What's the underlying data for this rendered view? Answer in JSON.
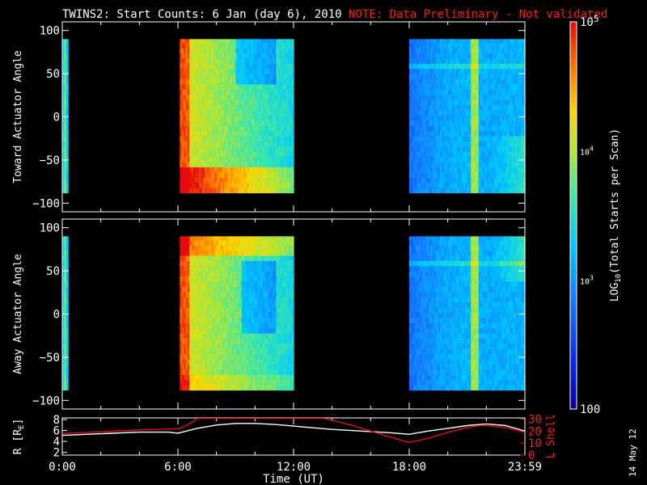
{
  "title": {
    "main": "TWINS2: Start Counts:  6 Jan (day   6), 2010",
    "note": "NOTE: Data Preliminary - Not validated"
  },
  "colorbar": {
    "label_log": "LOG",
    "label_sub": "10",
    "label_rest": "(Total Starts per Scan)",
    "ticks": [
      {
        "value": 100,
        "label": "100",
        "style": "plain"
      },
      {
        "value": 1000,
        "label": "10",
        "sup": "3",
        "style": "power"
      },
      {
        "value": 10000,
        "label": "10",
        "sup": "4",
        "style": "power"
      },
      {
        "value": 100000,
        "label": "10",
        "sup": "5",
        "style": "power"
      }
    ],
    "range": [
      100,
      100000
    ],
    "scale": "log"
  },
  "footer": {
    "date_stamp": "14 May 12"
  },
  "colors": {
    "background": "#000000",
    "note": "#ff1a1a",
    "r_line": "#ffffff",
    "l_line": "#e01010"
  },
  "chart_data": [
    {
      "type": "heatmap",
      "panel": "toward",
      "ylabel": "Toward Actuator Angle",
      "xlim": [
        0,
        24
      ],
      "ylim": [
        -110,
        110
      ],
      "yticks": [
        100,
        50,
        0,
        -50,
        -100
      ],
      "ytick_labels": [
        "100",
        "50",
        "0",
        "−50",
        "−100"
      ],
      "angle_range": [
        -88,
        90
      ],
      "data_intervals_hours": [
        [
          0.0,
          0.35
        ],
        [
          6.05,
          11.95
        ],
        [
          18.0,
          24.0
        ]
      ],
      "value_scale": "log10 counts",
      "notes": "high counts (~1e5) near 6:00 and around -80 deg; lows (~1e2.3) around 18:00-21:00"
    },
    {
      "type": "heatmap",
      "panel": "away",
      "ylabel": "Away Actuator Angle",
      "xlim": [
        0,
        24
      ],
      "ylim": [
        -110,
        110
      ],
      "yticks": [
        100,
        50,
        0,
        -50,
        -100
      ],
      "ytick_labels": [
        "100",
        "50",
        "0",
        "−50",
        "−100"
      ],
      "angle_range": [
        -88,
        90
      ],
      "data_intervals_hours": [
        [
          0.0,
          0.35
        ],
        [
          6.05,
          11.95
        ],
        [
          18.0,
          24.0
        ]
      ],
      "value_scale": "log10 counts"
    },
    {
      "type": "line",
      "panel": "orbit",
      "xlabel": "Time (UT)",
      "xlim": [
        0,
        24
      ],
      "xticks": [
        0,
        6,
        12,
        18,
        24
      ],
      "xtick_labels": [
        "0:00",
        "6:00",
        "12:00",
        "18:00",
        "23:59"
      ],
      "left_axis": {
        "label": "R [R",
        "label_sub": "E",
        "label_end": "]",
        "ylim": [
          1.5,
          8.3
        ],
        "yticks": [
          2,
          4,
          6,
          8
        ],
        "ytick_labels": [
          "2",
          "4",
          "6",
          "8"
        ]
      },
      "right_axis": {
        "label": "L Shell",
        "ylim": [
          0,
          31
        ],
        "yticks": [
          0,
          10,
          20,
          30
        ],
        "ytick_labels": [
          "0",
          "10",
          "20",
          "30"
        ]
      },
      "series": [
        {
          "axis": "left",
          "x": [
            0,
            2,
            4,
            5.5,
            6,
            7,
            8,
            9,
            10,
            11,
            12,
            13,
            14,
            15,
            16,
            17,
            18,
            19,
            20,
            21,
            22,
            23,
            24
          ],
          "values": [
            5.1,
            5.4,
            5.7,
            5.7,
            5.5,
            6.4,
            7.0,
            7.3,
            7.3,
            7.1,
            6.8,
            6.5,
            6.2,
            6.0,
            5.8,
            5.6,
            5.3,
            5.9,
            6.4,
            6.9,
            7.2,
            6.9,
            5.9
          ]
        },
        {
          "axis": "right",
          "x": [
            0,
            2,
            4,
            6,
            6.4,
            6.8,
            7.0,
            13.6,
            15,
            16,
            17,
            18,
            19,
            20,
            21,
            21.8,
            23,
            24
          ],
          "values": [
            18,
            19.5,
            21,
            22,
            24.5,
            28,
            30.5,
            30.5,
            25,
            20,
            15,
            10.5,
            14,
            19,
            23,
            25,
            23,
            19
          ]
        }
      ]
    }
  ]
}
